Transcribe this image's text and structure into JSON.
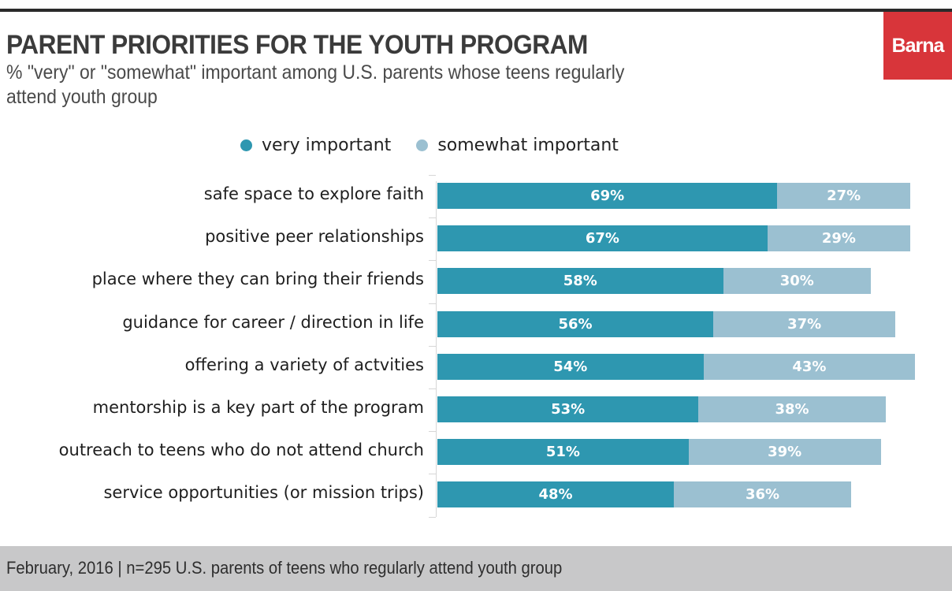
{
  "brand": {
    "logo_text": "Barna",
    "accent": "#d8353a"
  },
  "header": {
    "title": "PARENT PRIORITIES FOR THE YOUTH PROGRAM",
    "subtitle": "% \"very\" or \"somewhat\" important among U.S. parents whose teens regularly attend youth group"
  },
  "footer": {
    "text": "February, 2016 | n=295 U.S. parents of teens who regularly attend youth group"
  },
  "chart_data": {
    "type": "bar",
    "orientation": "horizontal",
    "stacked": true,
    "title": "PARENT PRIORITIES FOR THE YOUTH PROGRAM",
    "subtitle": "% \"very\" or \"somewhat\" important among U.S. parents whose teens regularly attend youth group",
    "xlabel": "",
    "ylabel": "",
    "xlim": [
      0,
      100
    ],
    "grid": false,
    "legend_position": "top",
    "categories": [
      "safe space to explore faith",
      "positive peer relationships",
      "place where they can bring their friends",
      "guidance for career / direction in life",
      "offering a variety of actvities",
      "mentorship is a key part of the program",
      "outreach to teens who do not attend church",
      "service opportunities (or mission trips)"
    ],
    "series": [
      {
        "name": "very important",
        "color": "#2e97b0",
        "values": [
          69,
          67,
          58,
          56,
          54,
          53,
          51,
          48
        ],
        "labels": [
          "69%",
          "67%",
          "58%",
          "56%",
          "54%",
          "53%",
          "51%",
          "48%"
        ]
      },
      {
        "name": "somewhat important",
        "color": "#9bc0d1",
        "values": [
          27,
          29,
          30,
          37,
          43,
          38,
          39,
          36
        ],
        "labels": [
          "27%",
          "29%",
          "30%",
          "37%",
          "43%",
          "38%",
          "39%",
          "36%"
        ]
      }
    ]
  }
}
